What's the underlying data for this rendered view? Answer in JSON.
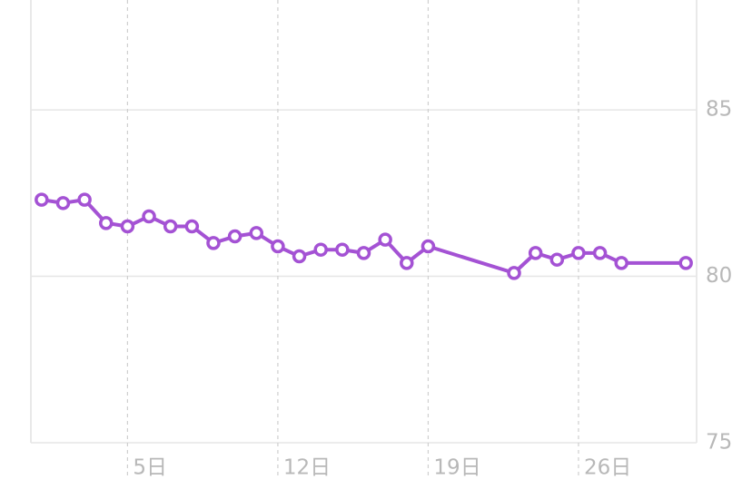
{
  "chart_data": {
    "type": "line",
    "x": [
      1,
      2,
      3,
      4,
      5,
      6,
      7,
      8,
      9,
      10,
      11,
      12,
      13,
      14,
      15,
      16,
      17,
      18,
      19,
      23,
      24,
      25,
      26,
      27,
      28,
      31
    ],
    "series": [
      {
        "color": "#a452d4",
        "values": [
          82.3,
          82.2,
          82.3,
          81.6,
          81.5,
          81.8,
          81.5,
          81.5,
          81.0,
          81.2,
          81.3,
          80.9,
          80.6,
          80.8,
          80.8,
          80.7,
          81.1,
          80.4,
          80.9,
          80.1,
          80.7,
          80.5,
          80.7,
          80.7,
          80.4,
          80.4
        ]
      }
    ],
    "xlim": [
      0.5,
      31.5
    ],
    "xticks": [
      {
        "value": 5,
        "label": "5日"
      },
      {
        "value": 12,
        "label": "12日"
      },
      {
        "value": 19,
        "label": "19日"
      },
      {
        "value": 26,
        "label": "26日"
      }
    ],
    "ylim": [
      75,
      88.3
    ],
    "yticks": [
      75,
      80,
      85
    ],
    "grid": true
  }
}
